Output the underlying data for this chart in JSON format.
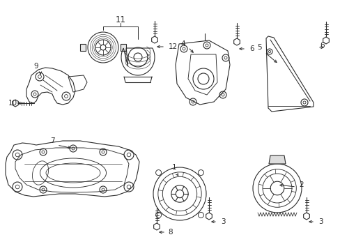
{
  "background_color": "#ffffff",
  "line_color": "#2a2a2a",
  "fig_width": 4.89,
  "fig_height": 3.6,
  "dpi": 100,
  "components": {
    "label_fontsize": 7.5,
    "callout_lw": 0.7,
    "part_lw": 0.8
  }
}
